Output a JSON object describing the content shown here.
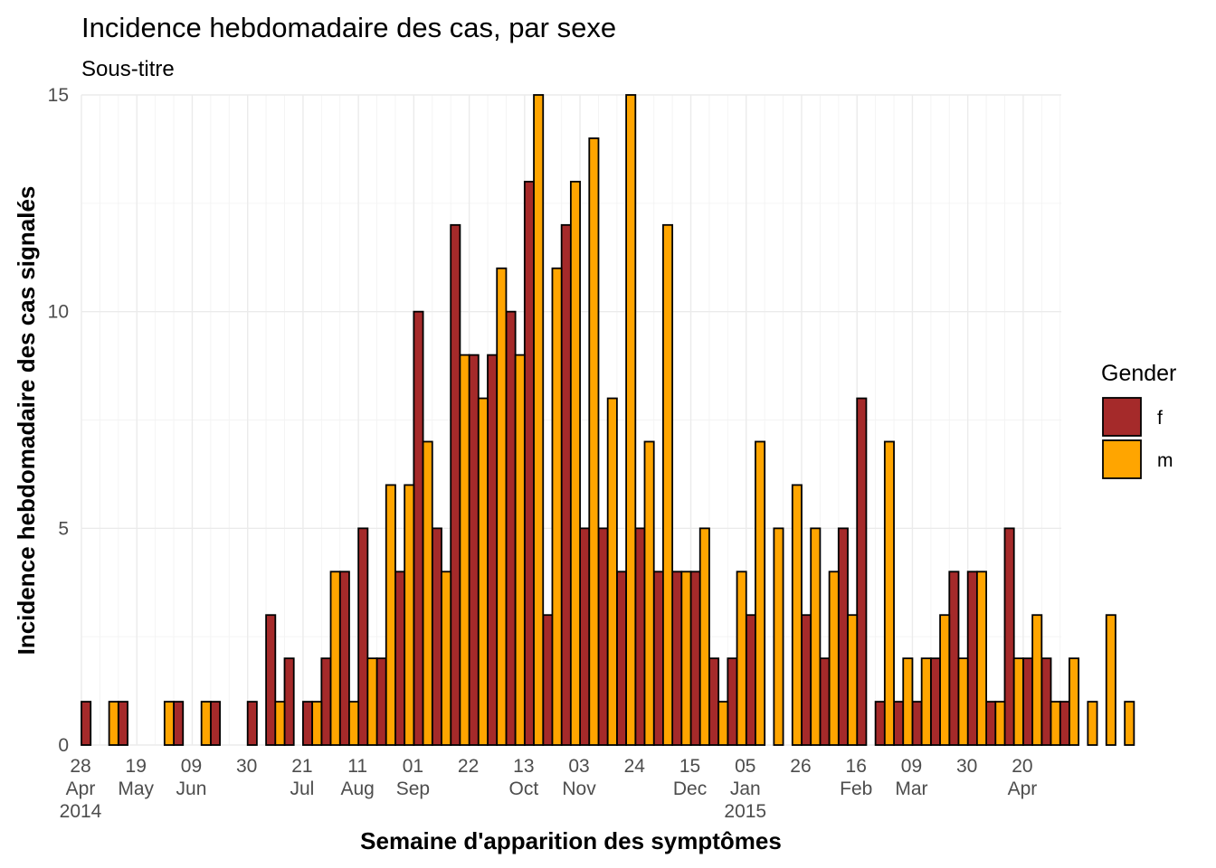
{
  "chart_data": {
    "type": "bar",
    "title": "Incidence hebdomadaire des cas, par sexe",
    "subtitle": "Sous-titre",
    "xlabel": "Semaine d'apparition des symptômes",
    "ylabel": "Incidence hebdomadaire des cas signalés",
    "ylim": [
      0,
      15
    ],
    "y_ticks": [
      0,
      5,
      10,
      15
    ],
    "x_week_start": "2014-04-28",
    "x_ticks": [
      {
        "week": 0,
        "lines": [
          "28",
          "Apr",
          "2014"
        ]
      },
      {
        "week": 3,
        "lines": [
          "19",
          "May"
        ]
      },
      {
        "week": 6,
        "lines": [
          "09",
          "Jun"
        ]
      },
      {
        "week": 9,
        "lines": [
          "30"
        ]
      },
      {
        "week": 12,
        "lines": [
          "21",
          "Jul"
        ]
      },
      {
        "week": 15,
        "lines": [
          "11",
          "Aug"
        ]
      },
      {
        "week": 18,
        "lines": [
          "01",
          "Sep"
        ]
      },
      {
        "week": 21,
        "lines": [
          "22"
        ]
      },
      {
        "week": 24,
        "lines": [
          "13",
          "Oct"
        ]
      },
      {
        "week": 27,
        "lines": [
          "03",
          "Nov"
        ]
      },
      {
        "week": 30,
        "lines": [
          "24"
        ]
      },
      {
        "week": 33,
        "lines": [
          "15",
          "Dec"
        ]
      },
      {
        "week": 36,
        "lines": [
          "05",
          "Jan",
          "2015"
        ]
      },
      {
        "week": 39,
        "lines": [
          "26"
        ]
      },
      {
        "week": 42,
        "lines": [
          "16",
          "Feb"
        ]
      },
      {
        "week": 45,
        "lines": [
          "09",
          "Mar"
        ]
      },
      {
        "week": 48,
        "lines": [
          "30"
        ]
      },
      {
        "week": 51,
        "lines": [
          "20",
          "Apr"
        ]
      }
    ],
    "series": [
      {
        "name": "f",
        "color": "#A52A2A",
        "values": [
          1,
          0,
          1,
          0,
          0,
          1,
          0,
          1,
          0,
          1,
          3,
          2,
          1,
          2,
          4,
          5,
          2,
          4,
          10,
          5,
          12,
          9,
          9,
          10,
          13,
          3,
          12,
          5,
          5,
          4,
          5,
          4,
          4,
          4,
          2,
          2,
          3,
          0,
          0,
          3,
          2,
          5,
          8,
          1,
          1,
          1,
          2,
          4,
          4,
          1,
          5,
          2,
          2,
          1
        ]
      },
      {
        "name": "m",
        "color": "#FFA500",
        "values": [
          0,
          1,
          0,
          0,
          1,
          0,
          1,
          0,
          0,
          0,
          1,
          0,
          1,
          4,
          1,
          2,
          6,
          6,
          7,
          4,
          9,
          8,
          11,
          9,
          15,
          11,
          13,
          14,
          8,
          15,
          7,
          12,
          4,
          5,
          1,
          4,
          7,
          5,
          6,
          5,
          4,
          3,
          0,
          7,
          2,
          2,
          3,
          2,
          4,
          1,
          2,
          3,
          1,
          2,
          1,
          3,
          1
        ]
      }
    ],
    "legend": {
      "title": "Gender",
      "position": "right"
    },
    "grid": true
  }
}
